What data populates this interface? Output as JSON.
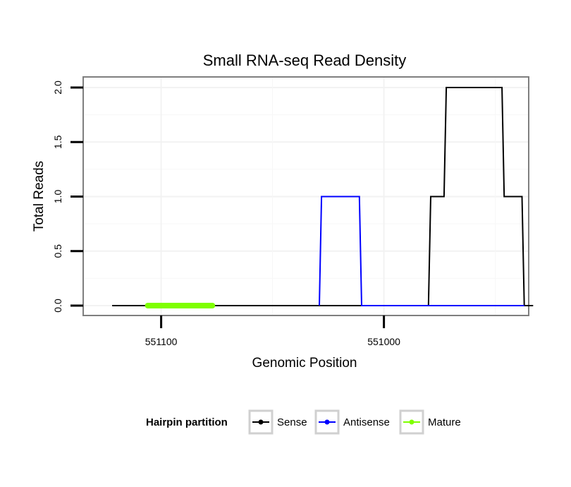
{
  "chart_data": {
    "type": "line",
    "title": "Small RNA-seq Read Density",
    "xlabel": "Genomic Position",
    "ylabel": "Total Reads",
    "x_reversed": true,
    "xlim": [
      551135,
      550935
    ],
    "ylim": [
      0,
      2.0
    ],
    "y_ticks": [
      0.0,
      0.5,
      1.0,
      1.5,
      2.0
    ],
    "y_tick_labels": [
      "0.0",
      "0.5",
      "1.0",
      "1.5",
      "2.0"
    ],
    "x_ticks": [
      551100,
      551000
    ],
    "x_tick_labels": [
      "551100",
      "551000"
    ],
    "grid": true,
    "legend": {
      "title": "Hairpin partition",
      "position": "bottom",
      "entries": [
        {
          "name": "Sense",
          "color": "#000000"
        },
        {
          "name": "Antisense",
          "color": "#0000ff"
        },
        {
          "name": "Mature",
          "color": "#7fff00"
        }
      ]
    },
    "series": [
      {
        "name": "Sense",
        "color": "#000000",
        "x": [
          551122,
          550980,
          550979,
          550973,
          550972,
          550947,
          550946,
          550938,
          550937,
          550933
        ],
        "y": [
          0,
          0,
          1,
          1,
          2,
          2,
          1,
          1,
          0,
          0
        ]
      },
      {
        "name": "Antisense",
        "color": "#0000ff",
        "x": [
          551029,
          551028,
          551011,
          551010,
          550980,
          550937
        ],
        "y": [
          0,
          1,
          1,
          0,
          0,
          0
        ]
      },
      {
        "name": "Mature",
        "color": "#7fff00",
        "x": [
          551106,
          551077
        ],
        "y": [
          0,
          0
        ]
      }
    ]
  }
}
